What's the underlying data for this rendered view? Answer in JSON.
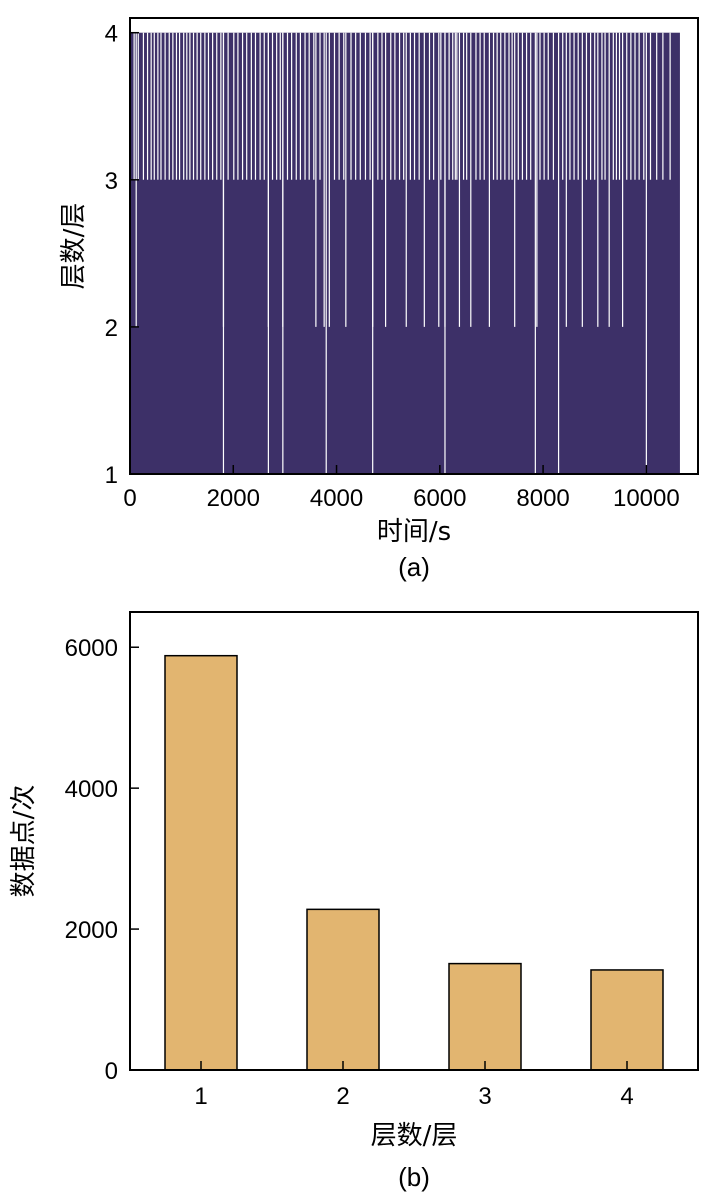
{
  "chart_data": [
    {
      "panel": "(a)",
      "type": "line",
      "xlabel": "时间/s",
      "ylabel": "层数/层",
      "xlim": [
        0,
        11000
      ],
      "ylim": [
        1,
        4.1
      ],
      "xticks": [
        0,
        2000,
        4000,
        6000,
        8000,
        10000
      ],
      "yticks": [
        1,
        2,
        3,
        4
      ],
      "x_end": 10650,
      "color": "#3d3068",
      "levels": [
        1,
        2,
        3,
        4
      ],
      "description_counts": {
        "1": 5880,
        "2": 2280,
        "3": 1510,
        "4": 1420
      },
      "dips_to_1": [
        1810,
        2680,
        2960,
        3800,
        4700,
        6100,
        7850,
        8300,
        10000
      ],
      "dips_to_2": [
        120,
        1810,
        2680,
        2960,
        3600,
        3760,
        3860,
        4180,
        4700,
        4950,
        5350,
        5700,
        5980,
        6100,
        6380,
        6600,
        6960,
        7450,
        7880,
        8450,
        8760,
        9060,
        9280,
        9540
      ],
      "dips_to_3": [
        80,
        160,
        260,
        340,
        410,
        470,
        540,
        600,
        680,
        760,
        830,
        900,
        960,
        1040,
        1100,
        1160,
        1230,
        1300,
        1370,
        1450,
        1520,
        1600,
        1680,
        1760,
        1900,
        2010,
        2090,
        2180,
        2260,
        2350,
        2430,
        2520,
        2600,
        2760,
        2840,
        2910,
        3050,
        3130,
        3220,
        3300,
        3390,
        3470,
        3560,
        3680,
        3960,
        4050,
        4140,
        4280,
        4370,
        4460,
        4560,
        4650,
        4800,
        4880,
        5050,
        5130,
        5220,
        5300,
        5430,
        5510,
        5600,
        5800,
        5880,
        6020,
        6180,
        6250,
        6300,
        6330,
        6460,
        6520,
        6700,
        6780,
        6860,
        7040,
        7110,
        7180,
        7260,
        7340,
        7400,
        7520,
        7600,
        7680,
        7760,
        7940,
        8020,
        8100,
        8200,
        8380,
        8520,
        8600,
        8680,
        8840,
        8920,
        9000,
        9140,
        9200,
        9360,
        9420,
        9480,
        9620,
        9700,
        9780,
        9860,
        9950,
        10080,
        10200,
        10320,
        10460
      ]
    },
    {
      "panel": "(b)",
      "type": "bar",
      "xlabel": "层数/层",
      "ylabel": "数据点/次",
      "categories": [
        "1",
        "2",
        "3",
        "4"
      ],
      "values": [
        5880,
        2280,
        1510,
        1420
      ],
      "ylim": [
        0,
        6500
      ],
      "yticks": [
        0,
        2000,
        4000,
        6000
      ],
      "color": "#e2b570",
      "edge_color": "#000000"
    }
  ]
}
